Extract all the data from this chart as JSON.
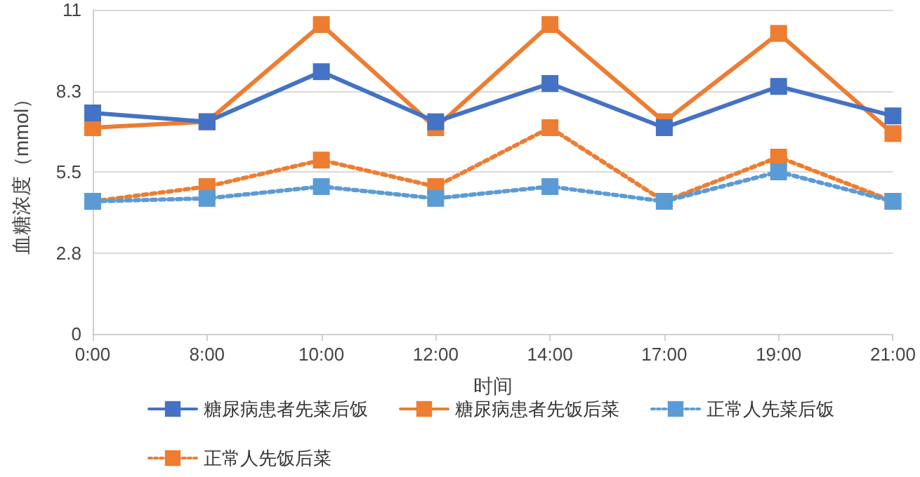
{
  "chart_data": {
    "type": "line",
    "xlabel": "时间",
    "ylabel": "血糖浓度（mmol）",
    "categories": [
      "0:00",
      "8:00",
      "10:00",
      "12:00",
      "14:00",
      "17:00",
      "19:00",
      "21:00"
    ],
    "series": [
      {
        "name": "糖尿病患者先菜后饭",
        "color": "#4472c4",
        "line_style": "solid",
        "values": [
          7.5,
          7.2,
          8.9,
          7.2,
          8.5,
          7.0,
          8.4,
          7.4
        ]
      },
      {
        "name": "糖尿病患者先饭后菜",
        "color": "#ed7d31",
        "line_style": "solid",
        "values": [
          7.0,
          7.2,
          10.5,
          7.0,
          10.5,
          7.2,
          10.2,
          6.8
        ]
      },
      {
        "name": "正常人先菜后饭",
        "color": "#5b9bd5",
        "line_style": "dotted",
        "values": [
          4.5,
          4.6,
          5.0,
          4.6,
          5.0,
          4.5,
          5.5,
          4.5
        ]
      },
      {
        "name": "正常人先饭后菜",
        "color": "#ed7d31",
        "line_style": "dotted",
        "values": [
          4.5,
          5.0,
          5.9,
          5.0,
          7.0,
          4.5,
          6.0,
          4.5
        ]
      }
    ],
    "ylim": [
      0,
      11
    ],
    "yticks": [
      0,
      {
        "value": 2.75,
        "label": "2.8"
      },
      5.5,
      {
        "value": 8.25,
        "label": "8.3"
      },
      11
    ],
    "grid": "y",
    "legend": "bottom",
    "marker": "square"
  }
}
